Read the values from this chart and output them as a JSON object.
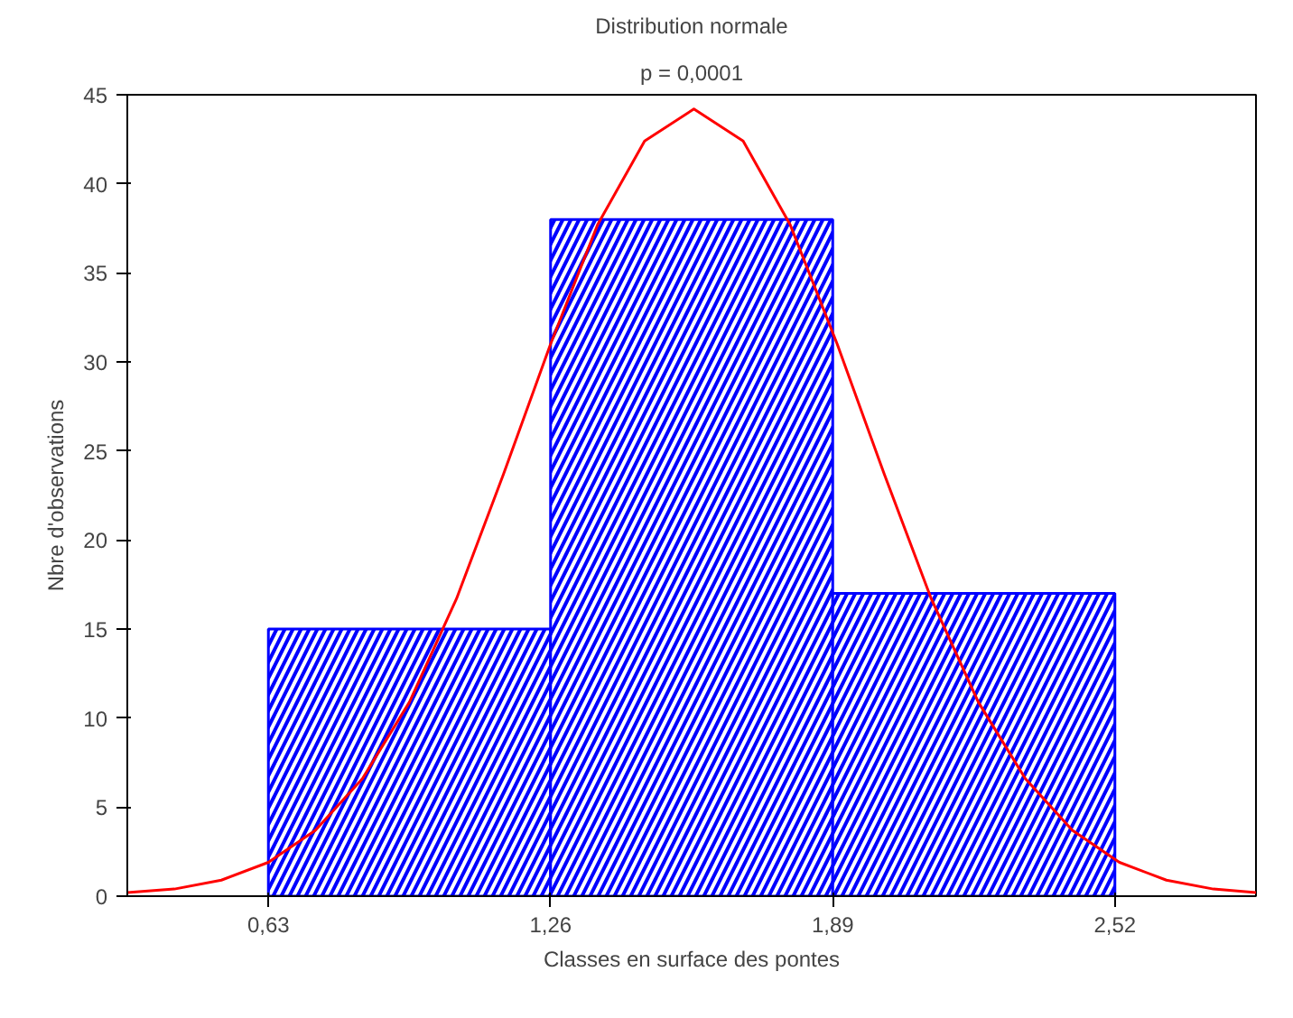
{
  "chart_data": {
    "type": "histogram",
    "title": "Distribution normale",
    "subtitle": "p = 0,0001",
    "xlabel": "Classes en surface des pontes",
    "ylabel": "Nbre d'observations",
    "bins": [
      0.63,
      1.26,
      1.89,
      2.52
    ],
    "series": [
      {
        "color": "#0000ff",
        "values": [
          15,
          38,
          17
        ]
      },
      {
        "type": "line",
        "color": "#ff0000",
        "x": [
          0.315,
          0.42,
          0.525,
          0.63,
          0.735,
          0.84,
          0.945,
          1.05,
          1.155,
          1.26,
          1.365,
          1.47,
          1.58,
          1.69,
          1.795,
          1.9,
          2.005,
          2.11,
          2.215,
          2.32,
          2.425,
          2.53,
          2.635,
          2.74,
          2.835
        ],
        "values": [
          0.2,
          0.4,
          0.9,
          1.9,
          3.7,
          6.6,
          10.9,
          16.7,
          23.7,
          31.0,
          37.7,
          42.4,
          44.2,
          42.4,
          37.7,
          31.0,
          23.7,
          16.7,
          10.9,
          6.6,
          3.7,
          1.9,
          0.9,
          0.4,
          0.2
        ]
      }
    ],
    "xlim": [
      0.315,
      2.835
    ],
    "ylim": [
      0,
      45
    ],
    "xticks": [
      {
        "value": 0.63,
        "label": "0,63"
      },
      {
        "value": 1.26,
        "label": "1,26"
      },
      {
        "value": 1.89,
        "label": "1,89"
      },
      {
        "value": 2.52,
        "label": "2,52"
      }
    ],
    "yticks": [
      0,
      5,
      10,
      15,
      20,
      25,
      30,
      35,
      40,
      45
    ],
    "grid": false
  }
}
